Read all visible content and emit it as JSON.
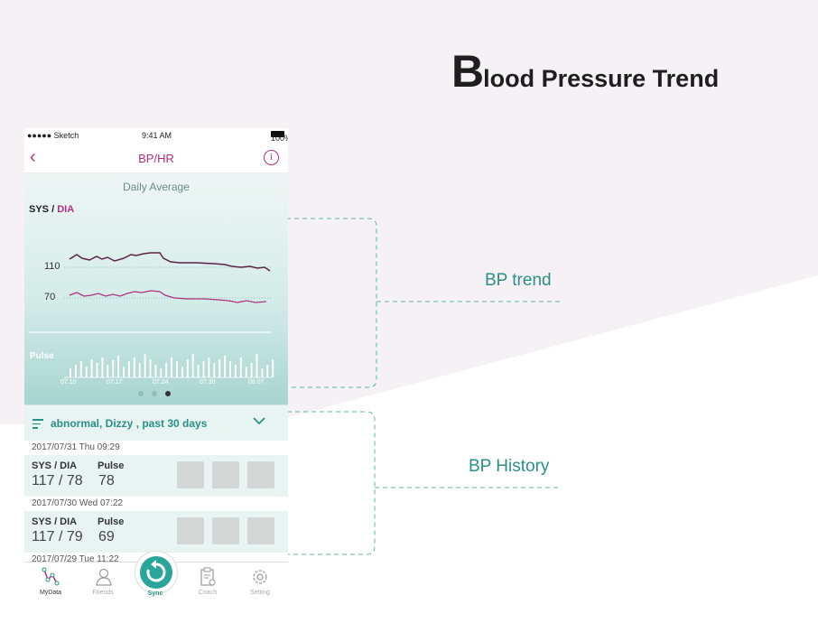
{
  "page": {
    "headline_first_letter": "B",
    "headline_rest": "lood Pressure Trend",
    "annotation_trend": "BP trend",
    "annotation_history": "BP History"
  },
  "status_bar": {
    "carrier": "●●●●● Sketch",
    "time": "9:41 AM",
    "battery": "100%"
  },
  "nav": {
    "title": "BP/HR",
    "back_icon": "chevron-left-icon",
    "info_icon": "info-icon"
  },
  "trend": {
    "title": "Daily Average",
    "axis_title_sys": "SYS",
    "axis_title_sep": " / ",
    "axis_title_dia": "DIA",
    "y_ticks": [
      "110",
      "70"
    ],
    "pulse_label": "Pulse",
    "x_ticks": [
      "07.10",
      "07.17",
      "07.24",
      "07.30",
      "08.07"
    ],
    "page_dots": 3,
    "active_dot": 2,
    "colors": {
      "sys_line": "#5a2448",
      "dia_line": "#b0307f",
      "pulse_bars": "#ffffff"
    }
  },
  "filter": {
    "text": "abnormal, Dizzy , past 30 days",
    "icon": "filter-icon",
    "chevron": "chevron-down-icon"
  },
  "records": [
    {
      "date": "2017/07/31 Thu 09:29",
      "sys_dia_label": "SYS / DIA",
      "pulse_label": "Pulse",
      "sys_dia": "117 / 78",
      "pulse": "78"
    },
    {
      "date": "2017/07/30 Wed 07:22",
      "sys_dia_label": "SYS / DIA",
      "pulse_label": "Pulse",
      "sys_dia": "117 / 79",
      "pulse": "69"
    },
    {
      "date": "2017/07/29 Tue 11:22"
    }
  ],
  "tabs": [
    {
      "label": "MyData",
      "icon": "mydata-icon"
    },
    {
      "label": "Friends",
      "icon": "friends-icon"
    },
    {
      "label": "Sync",
      "icon": "sync-icon"
    },
    {
      "label": "Coach",
      "icon": "coach-icon"
    },
    {
      "label": "Setting",
      "icon": "gear-icon"
    }
  ],
  "colors": {
    "accent": "#2a8f86",
    "brand": "#b0307f",
    "background_shape": "#f5f0f3"
  }
}
